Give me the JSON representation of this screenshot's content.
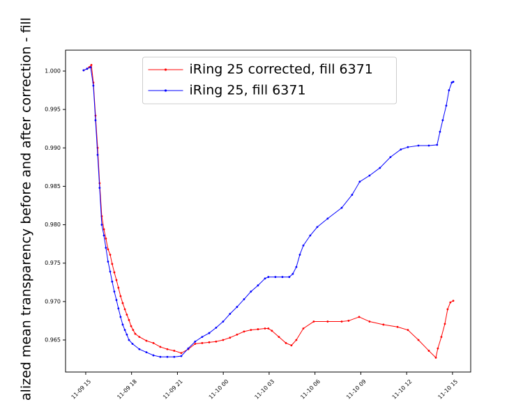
{
  "chart_data": {
    "type": "line",
    "y_label": "alized mean transparency before and after correction - fill",
    "legend": "upper center",
    "xlim": [
      13.68,
      40.19
    ],
    "ylim": [
      0.96083,
      1.00272
    ],
    "xticks": [
      {
        "value": 15,
        "label": "11-09 15"
      },
      {
        "value": 18,
        "label": "11-09 18"
      },
      {
        "value": 21,
        "label": "11-09 21"
      },
      {
        "value": 24,
        "label": "11-10 00"
      },
      {
        "value": 27,
        "label": "11-10 03"
      },
      {
        "value": 30,
        "label": "11-10 06"
      },
      {
        "value": 33,
        "label": "11-10 09"
      },
      {
        "value": 36,
        "label": "11-10 12"
      },
      {
        "value": 39,
        "label": "11-10 15"
      }
    ],
    "yticks": [
      0.965,
      {
        "value": 0.97,
        "label": "0.970"
      },
      0.975,
      {
        "value": 0.98,
        "label": "0.980"
      },
      0.985,
      {
        "value": 0.99,
        "label": "0.990"
      },
      0.995,
      {
        "value": 1,
        "label": "1.000"
      }
    ],
    "series": [
      {
        "name": "iRing 25 corrected, fill 6371",
        "color": "#ff0000",
        "x": [
          14.86,
          15.09,
          15.23,
          15.37,
          15.5,
          15.64,
          15.78,
          15.91,
          16.05,
          16.19,
          16.32,
          16.46,
          16.6,
          16.73,
          16.87,
          17.01,
          17.14,
          17.28,
          17.42,
          17.56,
          17.69,
          17.83,
          17.97,
          18.1,
          18.24,
          18.51,
          18.97,
          19.43,
          19.88,
          20.34,
          20.79,
          21.25,
          21.71,
          22.16,
          22.62,
          23.08,
          23.53,
          23.99,
          24.44,
          24.9,
          25.36,
          25.81,
          26.27,
          26.73,
          26.95,
          27.18,
          27.64,
          28.1,
          28.46,
          28.78,
          29.24,
          29.92,
          30.83,
          31.75,
          32.2,
          32.89,
          33.57,
          34.48,
          35.4,
          36.08,
          36.77,
          37.45,
          37.91,
          38.04,
          38.27,
          38.5,
          38.68,
          38.86,
          39.05
        ],
        "values": [
          1.0001,
          1.0003,
          1.0005,
          1.0008,
          0.9985,
          0.9942,
          0.99,
          0.9854,
          0.9811,
          0.9794,
          0.9782,
          0.9768,
          0.9761,
          0.9749,
          0.9738,
          0.9728,
          0.9718,
          0.9707,
          0.9698,
          0.969,
          0.9683,
          0.9676,
          0.9668,
          0.9663,
          0.9658,
          0.9654,
          0.9649,
          0.9646,
          0.9641,
          0.9638,
          0.9636,
          0.9633,
          0.9638,
          0.9645,
          0.9646,
          0.9647,
          0.9648,
          0.965,
          0.9653,
          0.9657,
          0.9661,
          0.9663,
          0.9664,
          0.9665,
          0.9665,
          0.9662,
          0.9654,
          0.9646,
          0.9643,
          0.965,
          0.9665,
          0.9674,
          0.9674,
          0.9674,
          0.9675,
          0.968,
          0.9674,
          0.967,
          0.9667,
          0.9663,
          0.965,
          0.9636,
          0.9627,
          0.9639,
          0.9654,
          0.9671,
          0.969,
          0.9699,
          0.9701
        ]
      },
      {
        "name": "iRing 25, fill 6371",
        "color": "#0000ff",
        "x": [
          14.86,
          15.09,
          15.32,
          15.5,
          15.64,
          15.78,
          15.91,
          16.05,
          16.19,
          16.32,
          16.46,
          16.6,
          16.73,
          16.87,
          17.01,
          17.14,
          17.28,
          17.42,
          17.56,
          17.69,
          17.83,
          18.06,
          18.51,
          18.97,
          19.43,
          19.88,
          20.34,
          20.79,
          21.25,
          21.71,
          22.16,
          22.62,
          23.08,
          23.53,
          23.99,
          24.44,
          24.9,
          25.36,
          25.81,
          26.27,
          26.73,
          26.95,
          27.41,
          27.87,
          28.32,
          28.55,
          28.78,
          29.01,
          29.24,
          29.69,
          30.15,
          30.83,
          31.75,
          32.43,
          32.93,
          33.57,
          34.25,
          34.94,
          35.62,
          36.08,
          36.77,
          37.45,
          37.99,
          38.18,
          38.36,
          38.59,
          38.77,
          38.95,
          39.05
        ],
        "values": [
          1.0001,
          1.0003,
          1.0005,
          0.9981,
          0.9936,
          0.9891,
          0.9848,
          0.98,
          0.9786,
          0.977,
          0.9752,
          0.9739,
          0.9726,
          0.9713,
          0.9702,
          0.9691,
          0.968,
          0.967,
          0.9663,
          0.9657,
          0.965,
          0.9645,
          0.9638,
          0.9634,
          0.963,
          0.9628,
          0.9628,
          0.9628,
          0.9629,
          0.9639,
          0.9648,
          0.9654,
          0.9659,
          0.9666,
          0.9674,
          0.9684,
          0.9693,
          0.9703,
          0.9713,
          0.9721,
          0.973,
          0.9732,
          0.9732,
          0.9732,
          0.9732,
          0.9736,
          0.9745,
          0.9761,
          0.9773,
          0.9786,
          0.9797,
          0.9808,
          0.9822,
          0.9839,
          0.9856,
          0.9864,
          0.9874,
          0.9888,
          0.9898,
          0.9901,
          0.9903,
          0.9903,
          0.9904,
          0.9921,
          0.9936,
          0.9955,
          0.9975,
          0.9985,
          0.9986
        ]
      }
    ]
  }
}
